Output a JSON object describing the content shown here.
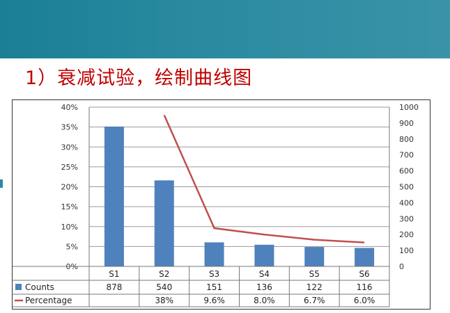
{
  "slide": {
    "title": "1）衰减试验，绘制曲线图",
    "banner_color": "#2a8aa0",
    "title_color": "#c00000"
  },
  "chart_data": {
    "type": "bar",
    "categories": [
      "S1",
      "S2",
      "S3",
      "S4",
      "S5",
      "S6"
    ],
    "series": [
      {
        "name": "Counts",
        "kind": "bar",
        "axis": "left",
        "color": "#4f81bd",
        "values": [
          878,
          540,
          151,
          136,
          122,
          116
        ],
        "value_labels": [
          "878",
          "540",
          "151",
          "136",
          "122",
          "116"
        ]
      },
      {
        "name": "Percentage",
        "kind": "line",
        "axis": "right",
        "color": "#c0504d",
        "values": [
          null,
          38,
          9.6,
          8.0,
          6.7,
          6.0
        ],
        "value_labels": [
          "",
          "38%",
          "9.6%",
          "8.0%",
          "6.7%",
          "6.0%"
        ]
      }
    ],
    "y_left": {
      "ticks": [
        "40%",
        "35%",
        "30%",
        "25%",
        "20%",
        "15%",
        "10%",
        "5%",
        "0%"
      ],
      "ylim": [
        0,
        40
      ]
    },
    "y_right": {
      "ticks": [
        "1000",
        "900",
        "800",
        "700",
        "600",
        "500",
        "400",
        "300",
        "200",
        "100",
        "0"
      ],
      "ylim": [
        0,
        1000
      ]
    },
    "grid": true,
    "legend": "data-table"
  }
}
